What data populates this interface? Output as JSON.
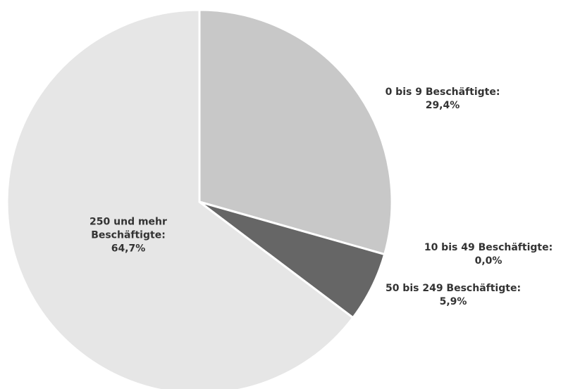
{
  "chart_data": {
    "type": "pie",
    "categories": [
      "0 bis 9 Beschäftigte:",
      "10 bis 49 Beschäftigte:",
      "50 bis 249 Beschäftigte:",
      "250 und mehr Beschäftigte:"
    ],
    "values": [
      29.4,
      0.0,
      5.9,
      64.7
    ],
    "value_labels": [
      "29,4%",
      "0,0%",
      "5,9%",
      "64,7%"
    ],
    "colors": [
      "#c8c8c8",
      "#a0a0a0",
      "#666666",
      "#e6e6e6"
    ]
  }
}
